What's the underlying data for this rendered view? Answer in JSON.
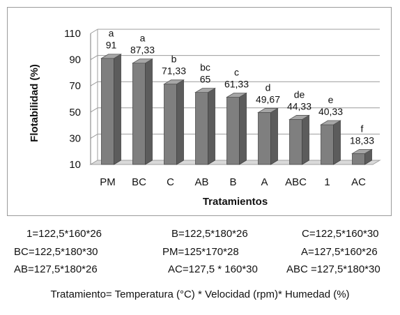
{
  "chart_data": {
    "type": "bar",
    "ylabel": "Flotabilidad (%)",
    "xlabel": "Tratamientos",
    "ylim": [
      10,
      110
    ],
    "yticks": [
      10,
      30,
      50,
      70,
      90,
      110
    ],
    "categories": [
      "PM",
      "BC",
      "C",
      "AB",
      "B",
      "A",
      "ABC",
      "1",
      "AC"
    ],
    "values": [
      91,
      87.33,
      71.33,
      65,
      61.33,
      49.67,
      44.33,
      40.33,
      18.33
    ],
    "value_labels": [
      "91",
      "87,33",
      "71,33",
      "65",
      "61,33",
      "49,67",
      "44,33",
      "40,33",
      "18,33"
    ],
    "significance_letters": [
      "a",
      "a",
      "b",
      "bc",
      "c",
      "d",
      "de",
      "e",
      "f"
    ],
    "grid": true,
    "bar_color": "#7f7f7f"
  },
  "legend": {
    "rows": [
      [
        "1=122,5*160*26",
        "B=122,5*180*26",
        "C=122,5*160*30"
      ],
      [
        "BC=122,5*180*30",
        "PM=125*170*28",
        "A=127,5*160*26"
      ],
      [
        "AB=127,5*180*26",
        "AC=127,5 * 160*30",
        "ABC =127,5*180*30"
      ]
    ],
    "footnote": "Tratamiento= Temperatura  (°C) * Velocidad (rpm)* Humedad (%)"
  }
}
